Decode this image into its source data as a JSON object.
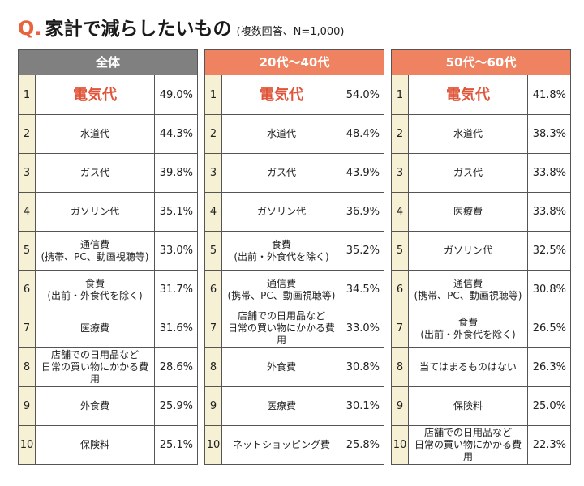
{
  "title": {
    "q_mark": "Q.",
    "question": "家計で減らしたいもの",
    "note": "(複数回答、N=1,000)"
  },
  "colors": {
    "accent": "#e8643c",
    "header_all": "#808080",
    "header_group": "#ef8260",
    "rank_bg": "#f6f0d4",
    "top_item": "#e0553a"
  },
  "panels": [
    {
      "header": "全体",
      "rows": [
        {
          "rank": "1",
          "item": "電気代",
          "pct": "49.0%"
        },
        {
          "rank": "2",
          "item": "水道代",
          "pct": "44.3%"
        },
        {
          "rank": "3",
          "item": "ガス代",
          "pct": "39.8%"
        },
        {
          "rank": "4",
          "item": "ガソリン代",
          "pct": "35.1%"
        },
        {
          "rank": "5",
          "item": "通信費\n(携帯、PC、動画視聴等)",
          "pct": "33.0%"
        },
        {
          "rank": "6",
          "item": "食費\n(出前・外食代を除く)",
          "pct": "31.7%"
        },
        {
          "rank": "7",
          "item": "医療費",
          "pct": "31.6%"
        },
        {
          "rank": "8",
          "item": "店舗での日用品など\n日常の買い物にかかる費用",
          "pct": "28.6%"
        },
        {
          "rank": "9",
          "item": "外食費",
          "pct": "25.9%"
        },
        {
          "rank": "10",
          "item": "保険料",
          "pct": "25.1%"
        }
      ]
    },
    {
      "header": "20代～40代",
      "rows": [
        {
          "rank": "1",
          "item": "電気代",
          "pct": "54.0%"
        },
        {
          "rank": "2",
          "item": "水道代",
          "pct": "48.4%"
        },
        {
          "rank": "3",
          "item": "ガス代",
          "pct": "43.9%"
        },
        {
          "rank": "4",
          "item": "ガソリン代",
          "pct": "36.9%"
        },
        {
          "rank": "5",
          "item": "食費\n(出前・外食代を除く)",
          "pct": "35.2%"
        },
        {
          "rank": "6",
          "item": "通信費\n(携帯、PC、動画視聴等)",
          "pct": "34.5%"
        },
        {
          "rank": "7",
          "item": "店舗での日用品など\n日常の買い物にかかる費用",
          "pct": "33.0%"
        },
        {
          "rank": "8",
          "item": "外食費",
          "pct": "30.8%"
        },
        {
          "rank": "9",
          "item": "医療費",
          "pct": "30.1%"
        },
        {
          "rank": "10",
          "item": "ネットショッピング費",
          "pct": "25.8%"
        }
      ]
    },
    {
      "header": "50代～60代",
      "rows": [
        {
          "rank": "1",
          "item": "電気代",
          "pct": "41.8%"
        },
        {
          "rank": "2",
          "item": "水道代",
          "pct": "38.3%"
        },
        {
          "rank": "3",
          "item": "ガス代",
          "pct": "33.8%"
        },
        {
          "rank": "4",
          "item": "医療費",
          "pct": "33.8%"
        },
        {
          "rank": "5",
          "item": "ガソリン代",
          "pct": "32.5%"
        },
        {
          "rank": "6",
          "item": "通信費\n(携帯、PC、動画視聴等)",
          "pct": "30.8%"
        },
        {
          "rank": "7",
          "item": "食費\n(出前・外食代を除く)",
          "pct": "26.5%"
        },
        {
          "rank": "8",
          "item": "当てはまるものはない",
          "pct": "26.3%"
        },
        {
          "rank": "9",
          "item": "保険料",
          "pct": "25.0%"
        },
        {
          "rank": "10",
          "item": "店舗での日用品など\n日常の買い物にかかる費用",
          "pct": "22.3%"
        }
      ]
    }
  ]
}
